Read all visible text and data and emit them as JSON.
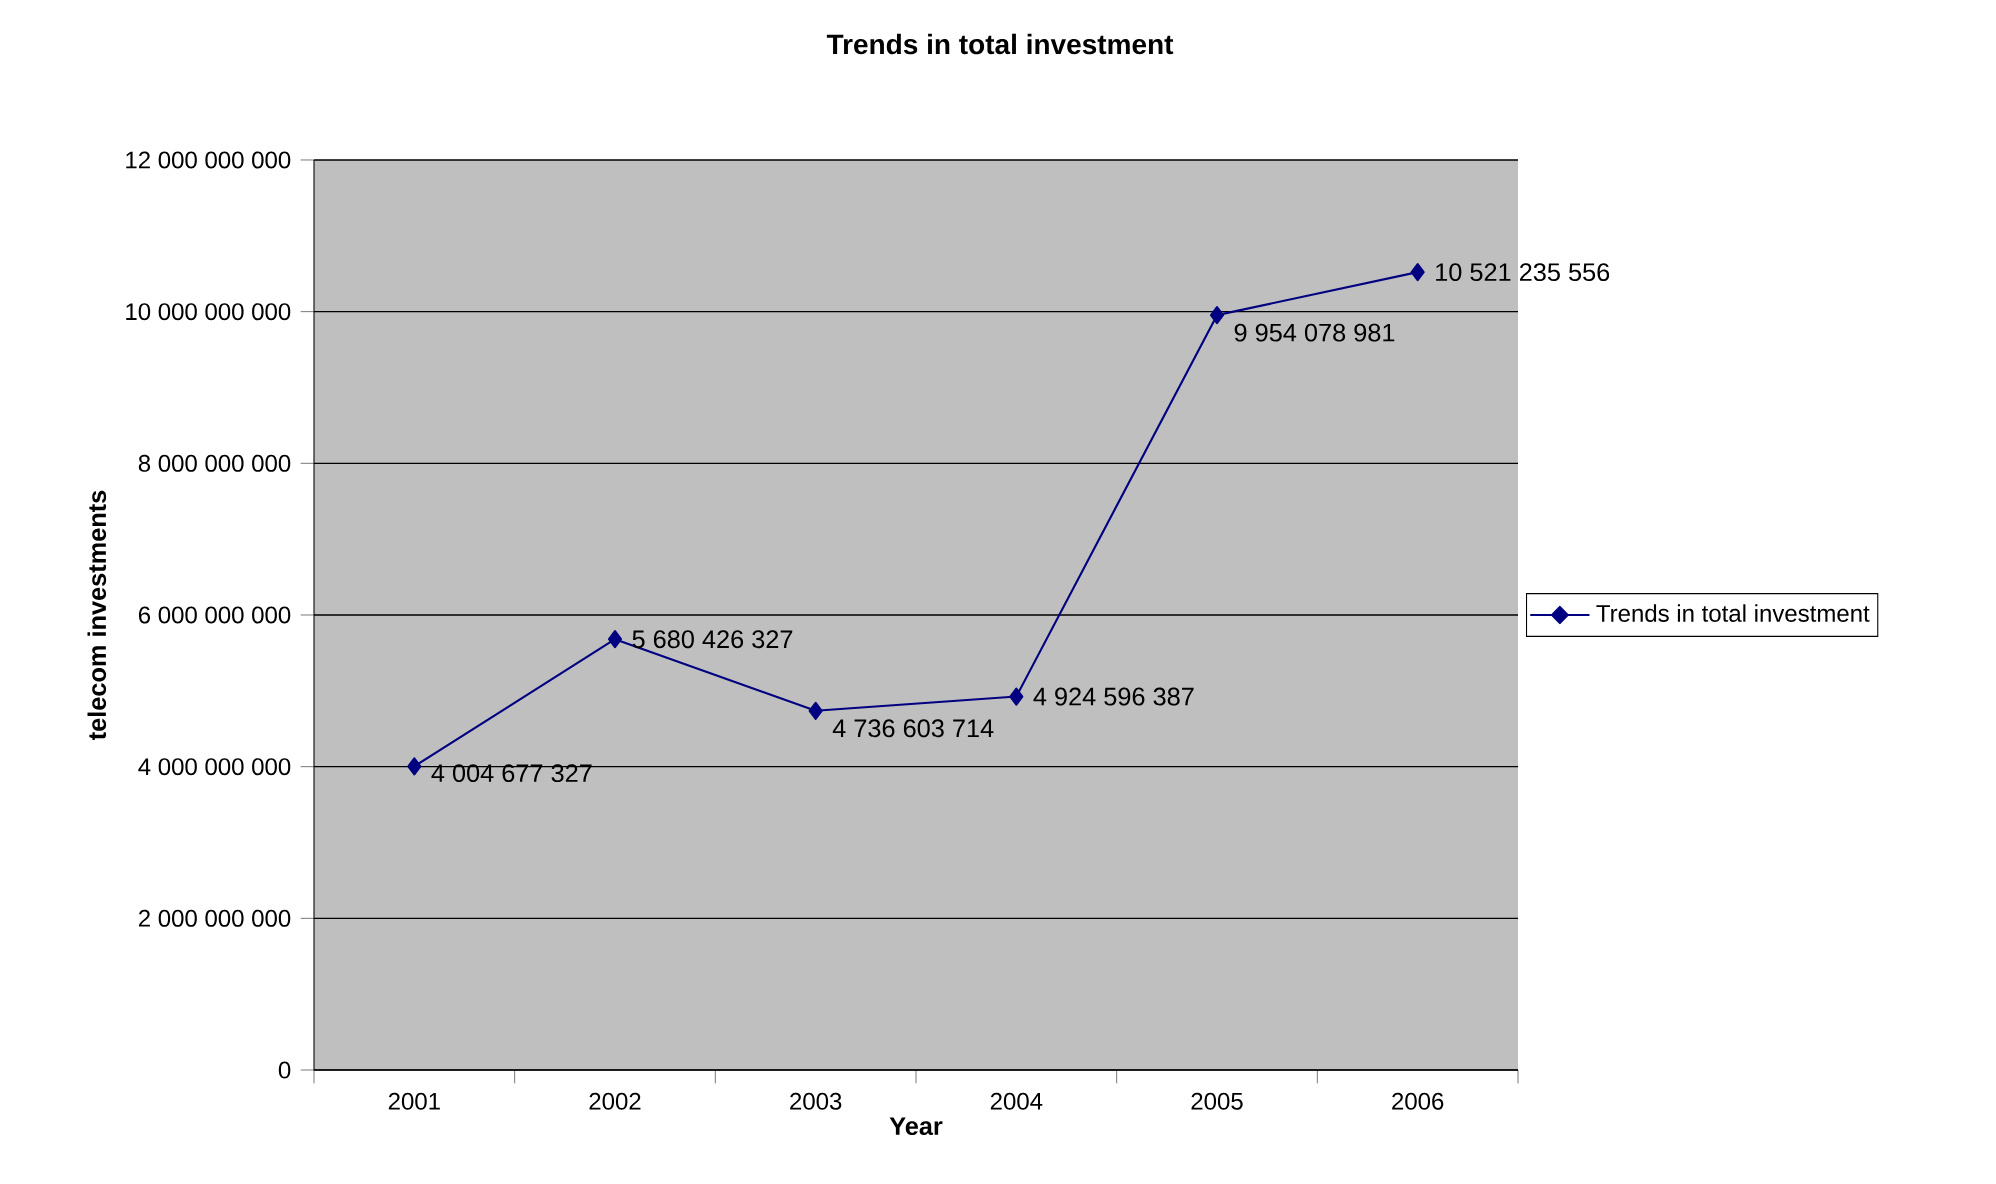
{
  "chart_data": {
    "type": "line",
    "title": "Trends in total investment",
    "xlabel": "Year",
    "ylabel": "telecom investments",
    "categories": [
      "2001",
      "2002",
      "2003",
      "2004",
      "2005",
      "2006"
    ],
    "series": [
      {
        "name": "Trends in total investment",
        "color": "#000080",
        "values": [
          4004677327,
          5680426327,
          4736603714,
          4924596387,
          9954078981,
          10521235556
        ],
        "value_labels": [
          "4 004 677 327",
          "5 680 426 327",
          "4 736 603 714",
          "4 924 596 387",
          "9 954 078 981",
          "10 521 235 556"
        ]
      }
    ],
    "ylim": [
      0,
      12000000000
    ],
    "yticks": [
      {
        "value": 0,
        "label": "0"
      },
      {
        "value": 2000000000,
        "label": "2 000 000 000"
      },
      {
        "value": 4000000000,
        "label": "4 000 000 000"
      },
      {
        "value": 6000000000,
        "label": "6 000 000 000"
      },
      {
        "value": 8000000000,
        "label": "8 000 000 000"
      },
      {
        "value": 10000000000,
        "label": "10 000 000 000"
      },
      {
        "value": 12000000000,
        "label": "12 000 000 000"
      }
    ],
    "grid": "y",
    "legend": "right",
    "marker": "diamond",
    "line_style": "solid"
  }
}
